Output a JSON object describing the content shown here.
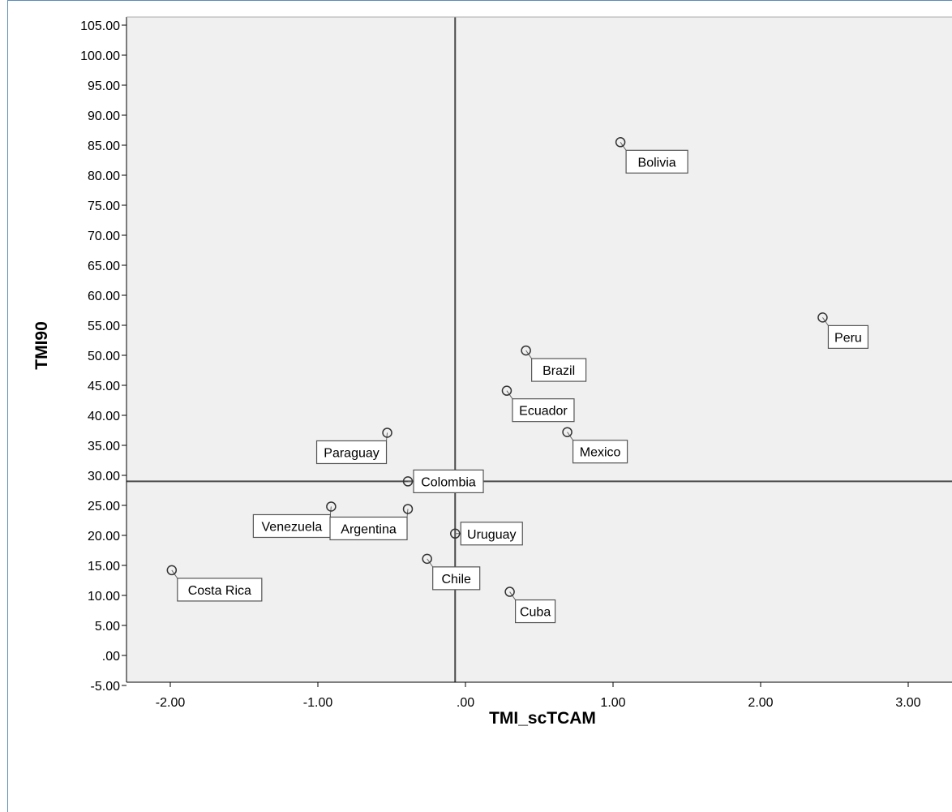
{
  "chart_data": {
    "type": "scatter",
    "title": "",
    "xlabel": "TMI_scTCAM",
    "ylabel": "TMI90",
    "xlim": [
      -2.3,
      3.3
    ],
    "ylim": [
      -5,
      105
    ],
    "x_ticks": [
      -2,
      -1,
      0,
      1,
      2,
      3
    ],
    "x_tick_labels": [
      "-2.00",
      "-1.00",
      ".00",
      "1.00",
      "2.00",
      "3.00"
    ],
    "y_ticks": [
      -5,
      0,
      5,
      10,
      15,
      20,
      25,
      30,
      35,
      40,
      45,
      50,
      55,
      60,
      65,
      70,
      75,
      80,
      85,
      90,
      95,
      100,
      105
    ],
    "y_tick_labels": [
      "-5.00",
      ".00",
      "5.00",
      "10.00",
      "15.00",
      "20.00",
      "25.00",
      "30.00",
      "35.00",
      "40.00",
      "45.00",
      "50.00",
      "55.00",
      "60.00",
      "65.00",
      "70.00",
      "75.00",
      "80.00",
      "85.00",
      "90.00",
      "95.00",
      "100.00",
      "105.00"
    ],
    "reference_lines": {
      "x": -0.07,
      "y": 29
    },
    "grid": false,
    "points": [
      {
        "label": "Bolivia",
        "x": 1.05,
        "y": 85.5,
        "label_dir": "down-right"
      },
      {
        "label": "Peru",
        "x": 2.42,
        "y": 56.3,
        "label_dir": "down-right"
      },
      {
        "label": "Brazil",
        "x": 0.41,
        "y": 50.8,
        "label_dir": "down-right"
      },
      {
        "label": "Ecuador",
        "x": 0.28,
        "y": 44.1,
        "label_dir": "down-right"
      },
      {
        "label": "Mexico",
        "x": 0.69,
        "y": 37.2,
        "label_dir": "down-right"
      },
      {
        "label": "Paraguay",
        "x": -0.53,
        "y": 37.1,
        "label_dir": "down-left"
      },
      {
        "label": "Colombia",
        "x": -0.39,
        "y": 29.0,
        "label_dir": "right"
      },
      {
        "label": "Venezuela",
        "x": -0.91,
        "y": 24.8,
        "label_dir": "down-left"
      },
      {
        "label": "Argentina",
        "x": -0.39,
        "y": 24.4,
        "label_dir": "down-left"
      },
      {
        "label": "Uruguay",
        "x": -0.07,
        "y": 20.3,
        "label_dir": "right"
      },
      {
        "label": "Chile",
        "x": -0.26,
        "y": 16.1,
        "label_dir": "down-right"
      },
      {
        "label": "Costa Rica",
        "x": -1.99,
        "y": 14.2,
        "label_dir": "down-right"
      },
      {
        "label": "Cuba",
        "x": 0.3,
        "y": 10.6,
        "label_dir": "down-right"
      }
    ],
    "colors": {
      "plot_background": "#f0f0f0",
      "axis": "#000000",
      "reference_line": "#4a4a4a",
      "marker_stroke": "#333333",
      "label_box_fill": "#ffffff",
      "frame_border": "#5b8db8"
    }
  }
}
